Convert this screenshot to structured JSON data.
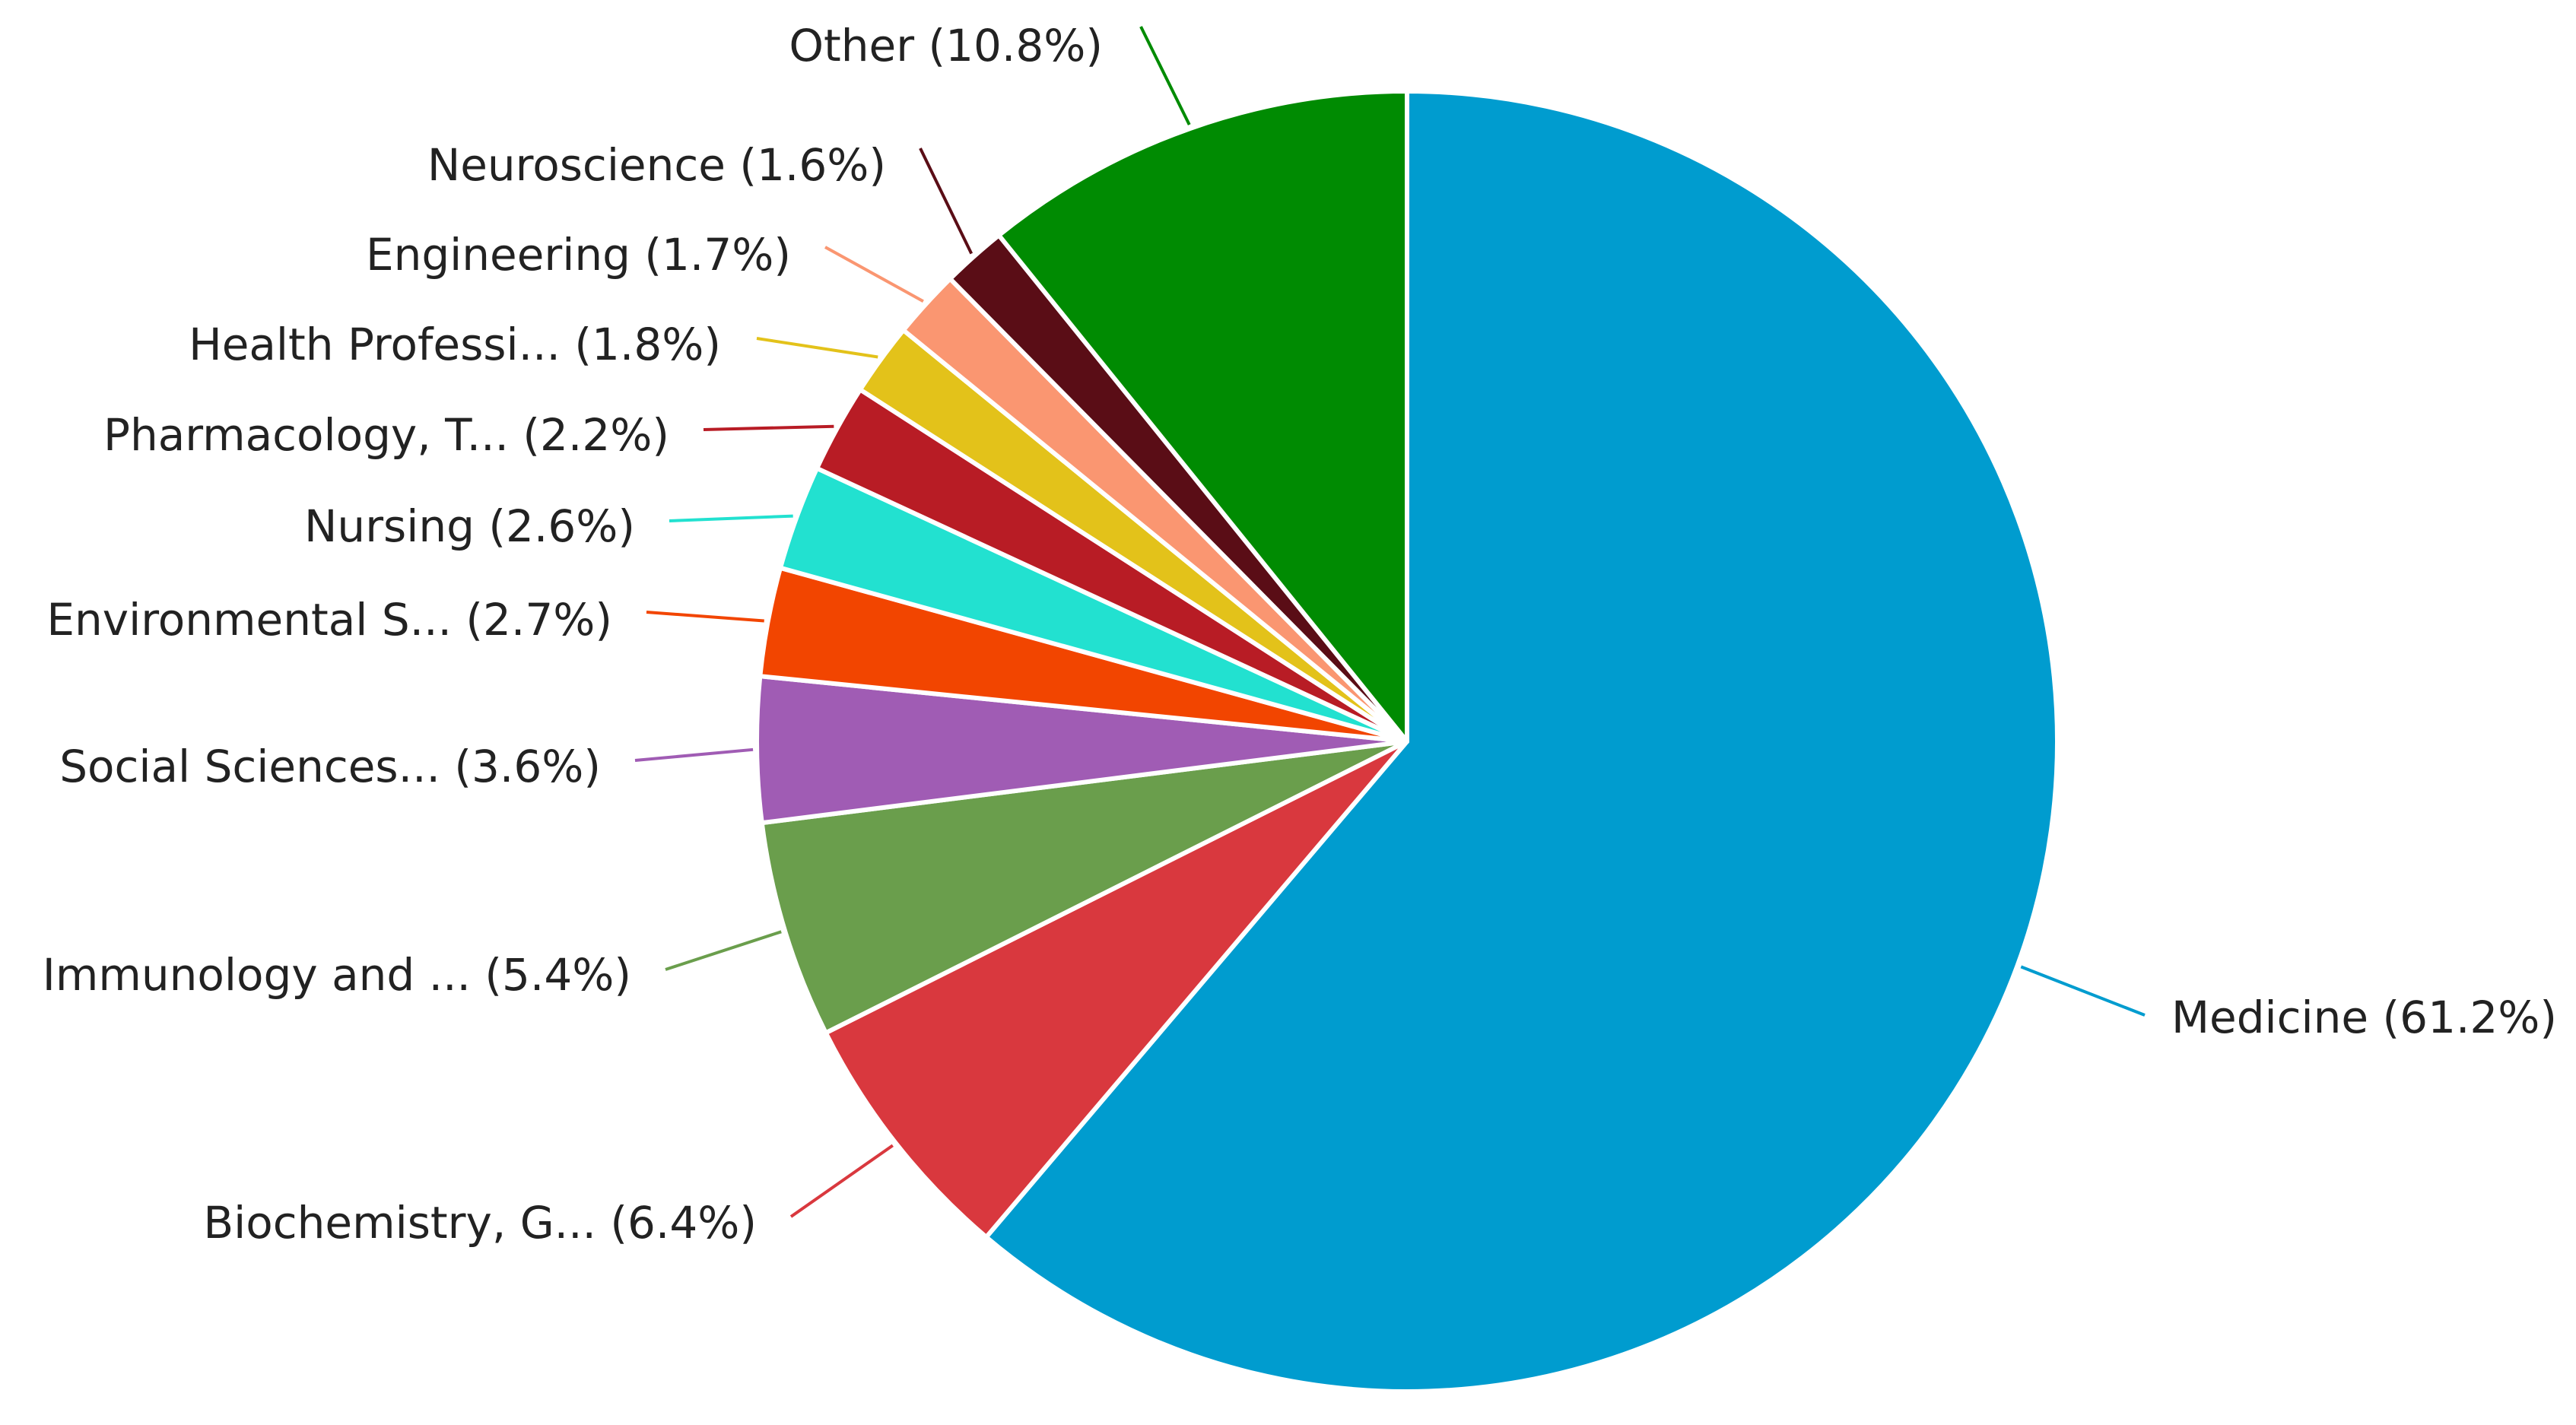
{
  "chart_data": {
    "type": "pie",
    "start_angle_deg": 0,
    "direction": "clockwise",
    "title": "",
    "slices": [
      {
        "label": "Medicine (61.2%)",
        "value": 61.2,
        "color": "#009ccf"
      },
      {
        "label": "Biochemistry, G... (6.4%)",
        "value": 6.4,
        "color": "#d9383e"
      },
      {
        "label": "Immunology and ... (5.4%)",
        "value": 5.4,
        "color": "#6a9e4c"
      },
      {
        "label": "Social Sciences... (3.6%)",
        "value": 3.6,
        "color": "#a05cb4"
      },
      {
        "label": "Environmental S... (2.7%)",
        "value": 2.7,
        "color": "#f24500"
      },
      {
        "label": "Nursing (2.6%)",
        "value": 2.6,
        "color": "#22e1d0"
      },
      {
        "label": "Pharmacology, T... (2.2%)",
        "value": 2.2,
        "color": "#b81c25"
      },
      {
        "label": "Health Professi... (1.8%)",
        "value": 1.8,
        "color": "#e3c21a"
      },
      {
        "label": "Engineering (1.7%)",
        "value": 1.7,
        "color": "#fa9671"
      },
      {
        "label": "Neuroscience (1.6%)",
        "value": 1.6,
        "color": "#5a0d16"
      },
      {
        "label": "Other (10.8%)",
        "value": 10.8,
        "color": "#008b02"
      }
    ]
  }
}
